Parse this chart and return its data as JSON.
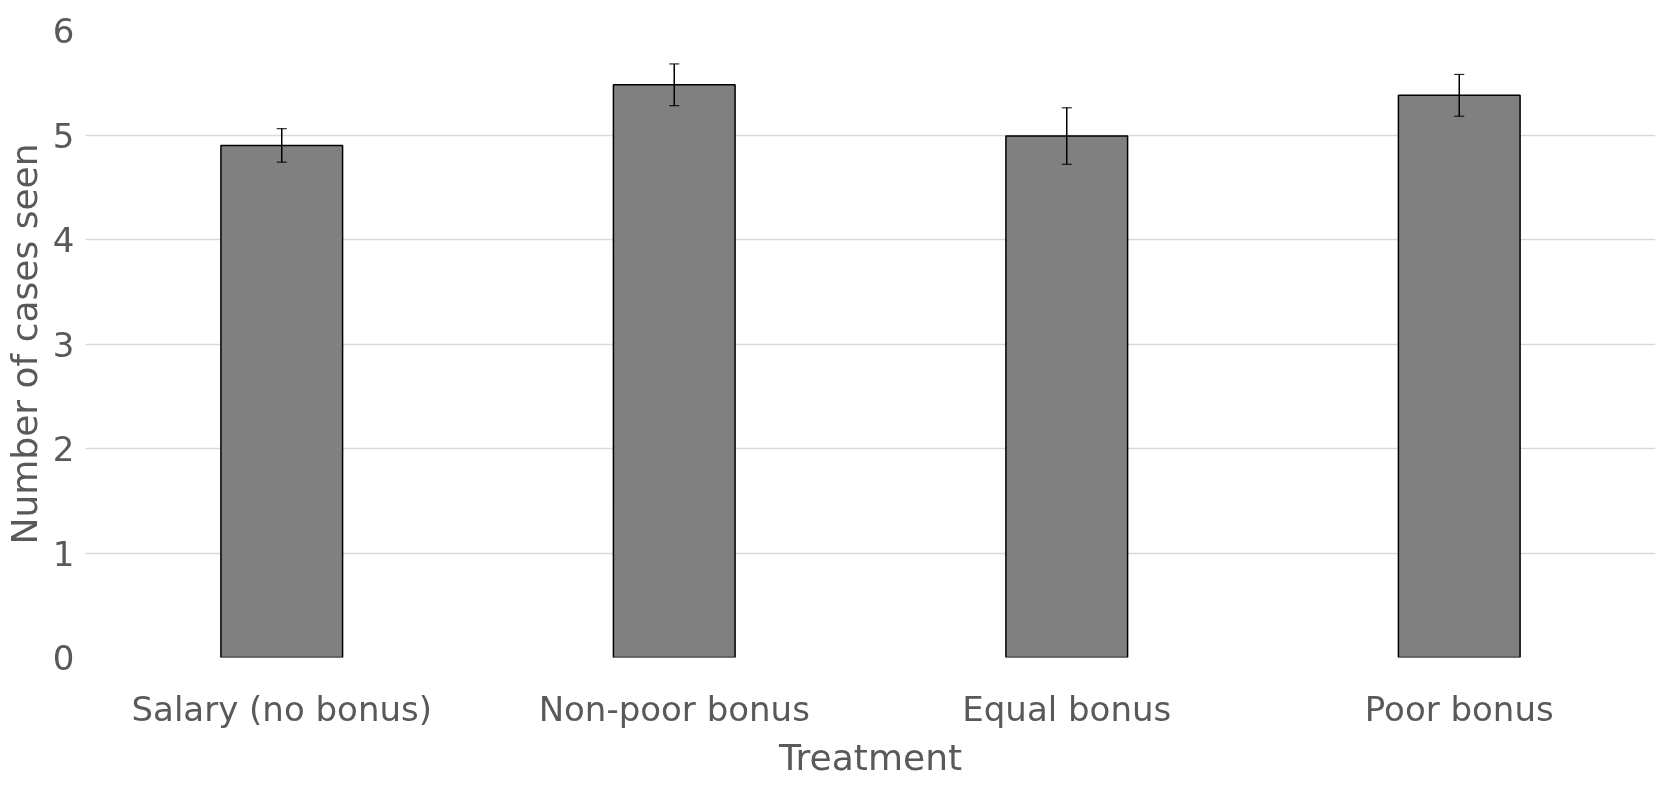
{
  "chart_data": {
    "type": "bar",
    "xlabel": "Treatment",
    "ylabel": "Number of cases seen",
    "categories": [
      "Salary (no bonus)",
      "Non-poor bonus",
      "Equal bonus",
      "Poor bonus"
    ],
    "values": [
      4.9,
      5.48,
      4.99,
      5.38
    ],
    "errors": [
      0.16,
      0.2,
      0.27,
      0.2
    ],
    "color": "#808080",
    "ylim": [
      0,
      6
    ],
    "yticks": [
      0,
      1,
      2,
      3,
      4,
      5,
      6
    ],
    "grid": "y"
  }
}
